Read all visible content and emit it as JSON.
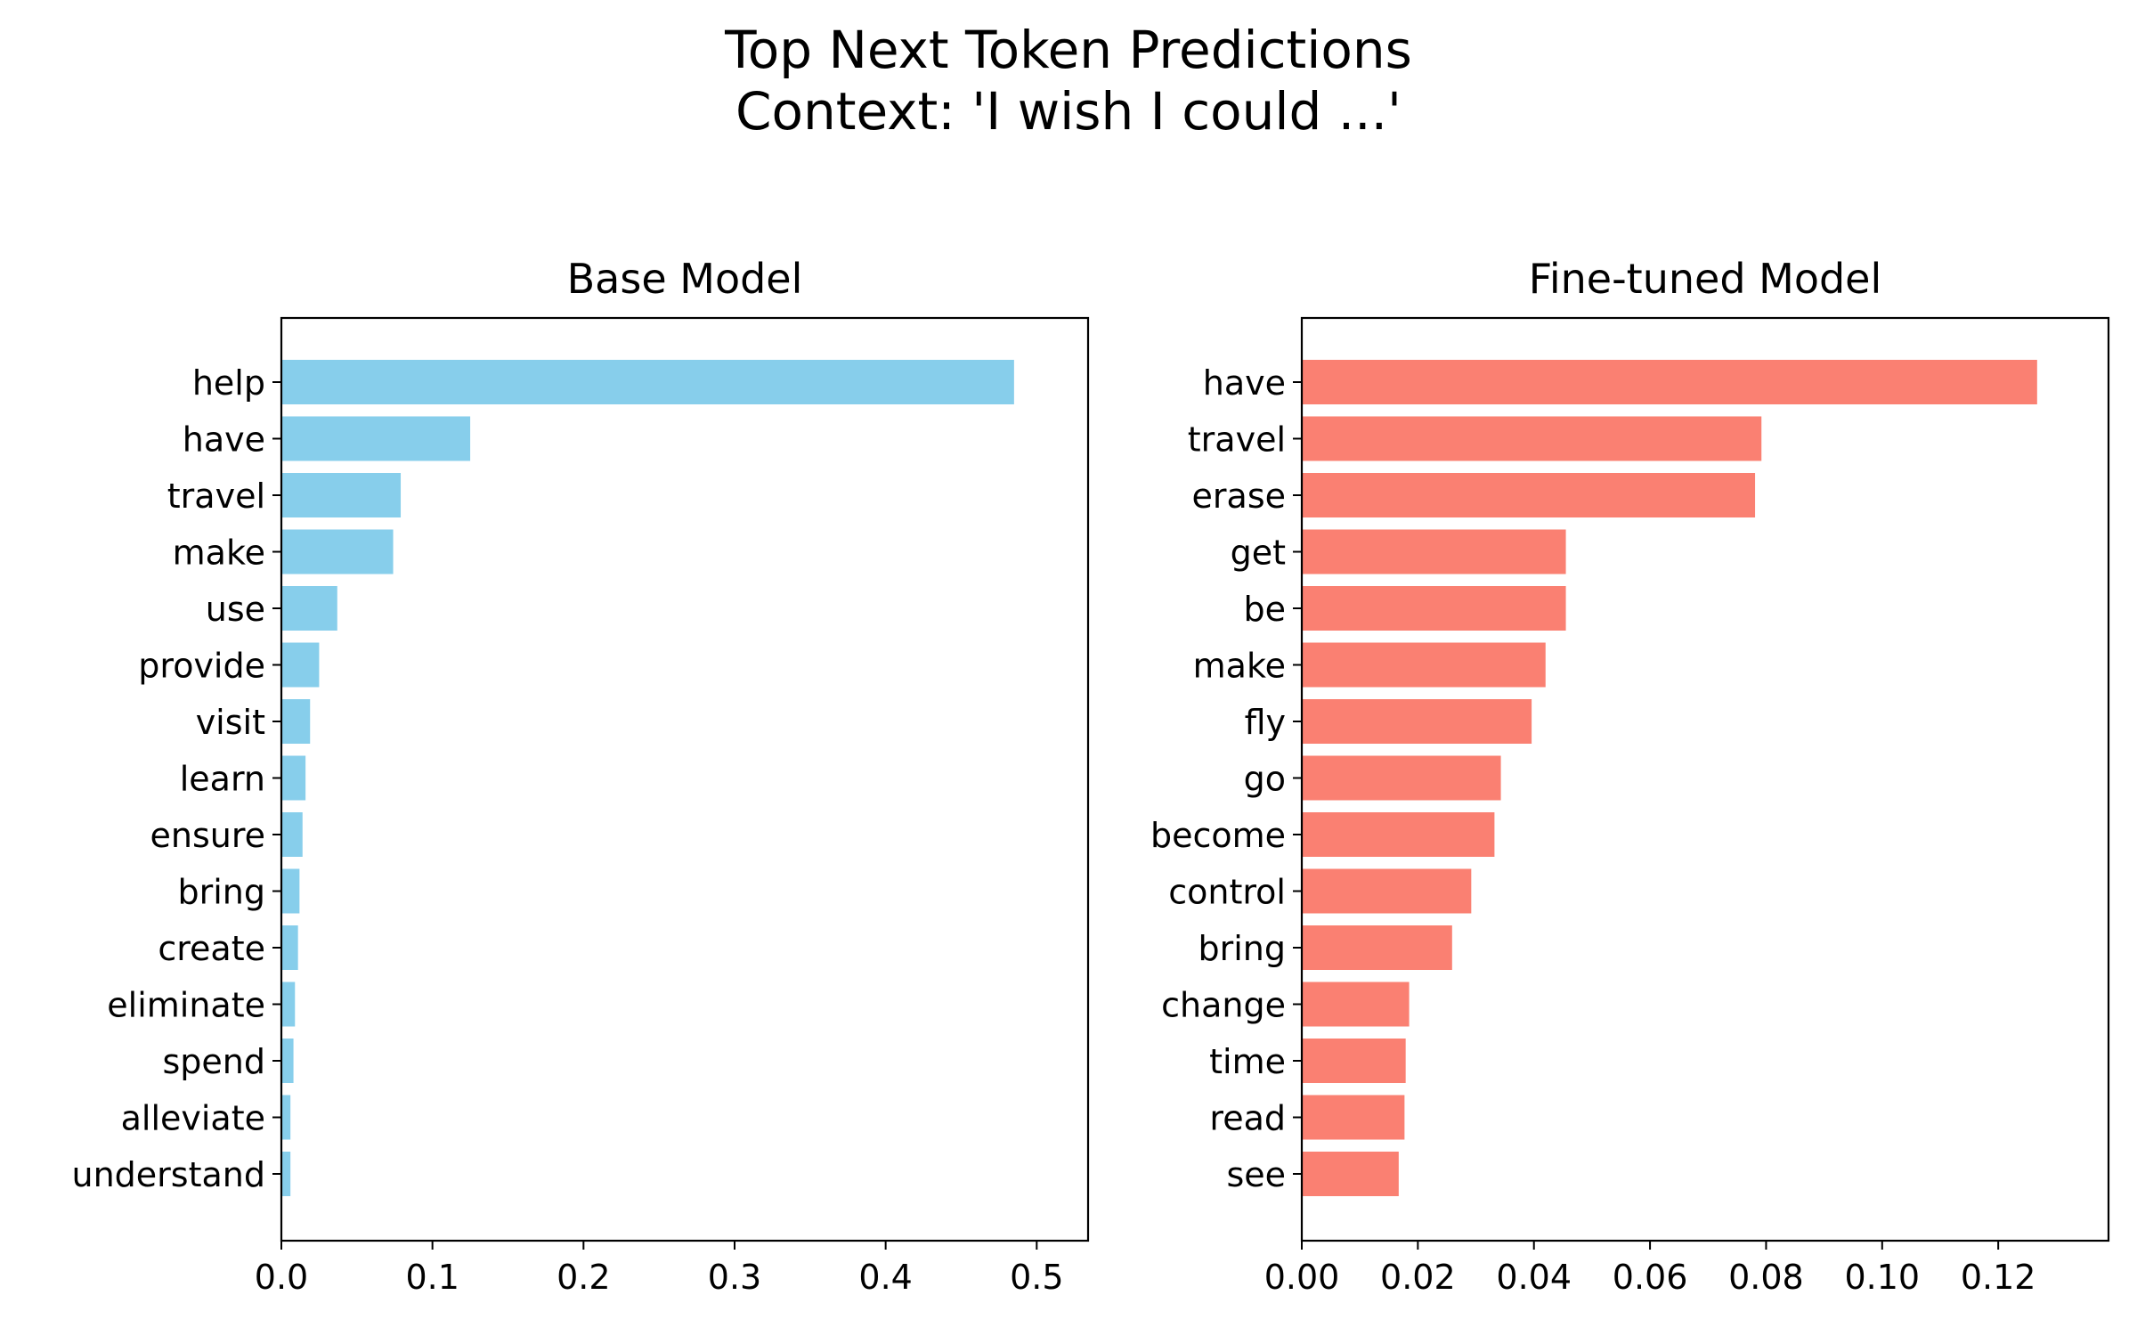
{
  "figure": {
    "title_line1": "Top Next Token Predictions",
    "title_line2": "Context: 'I wish I could ...'"
  },
  "chart_data": [
    {
      "type": "bar",
      "orientation": "horizontal",
      "title": "Base Model",
      "xlabel": "",
      "ylabel": "",
      "color": "#87CEEB",
      "xlim": [
        0,
        0.534
      ],
      "xticks": [
        0.0,
        0.1,
        0.2,
        0.3,
        0.4,
        0.5
      ],
      "xtick_labels": [
        "0.0",
        "0.1",
        "0.2",
        "0.3",
        "0.4",
        "0.5"
      ],
      "categories": [
        "help",
        "have",
        "travel",
        "make",
        "use",
        "provide",
        "visit",
        "learn",
        "ensure",
        "bring",
        "create",
        "eliminate",
        "spend",
        "alleviate",
        "understand"
      ],
      "values": [
        0.485,
        0.125,
        0.079,
        0.074,
        0.037,
        0.025,
        0.019,
        0.016,
        0.014,
        0.012,
        0.011,
        0.009,
        0.008,
        0.006,
        0.006
      ],
      "grid": false,
      "legend": "none"
    },
    {
      "type": "bar",
      "orientation": "horizontal",
      "title": "Fine-tuned Model",
      "xlabel": "",
      "ylabel": "",
      "color": "#FA8072",
      "xlim": [
        0,
        0.139
      ],
      "xticks": [
        0.0,
        0.02,
        0.04,
        0.06,
        0.08,
        0.1,
        0.12
      ],
      "xtick_labels": [
        "0.00",
        "0.02",
        "0.04",
        "0.06",
        "0.08",
        "0.10",
        "0.12"
      ],
      "categories": [
        "have",
        "travel",
        "erase",
        "get",
        "be",
        "make",
        "fly",
        "go",
        "become",
        "control",
        "bring",
        "change",
        "time",
        "read",
        "see"
      ],
      "values": [
        0.1267,
        0.0792,
        0.0781,
        0.0455,
        0.0455,
        0.042,
        0.0396,
        0.0343,
        0.0332,
        0.0292,
        0.0259,
        0.0185,
        0.0179,
        0.0177,
        0.0167
      ],
      "grid": false,
      "legend": "none"
    }
  ]
}
